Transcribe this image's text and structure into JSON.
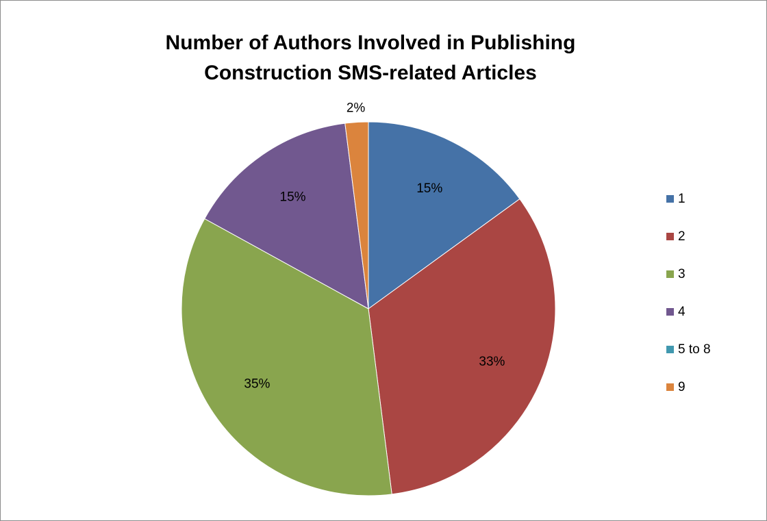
{
  "chart_data": {
    "type": "pie",
    "title": [
      "Number of Authors Involved in Publishing",
      "Construction SMS-related Articles"
    ],
    "slices": [
      {
        "label": "1",
        "value": 15,
        "data_label": "15%",
        "color": "#4572A7"
      },
      {
        "label": "2",
        "value": 33,
        "data_label": "33%",
        "color": "#AA4643"
      },
      {
        "label": "3",
        "value": 35,
        "data_label": "35%",
        "color": "#89A54E"
      },
      {
        "label": "4",
        "value": 15,
        "data_label": "15%",
        "color": "#71588F"
      },
      {
        "label": "5 to 8",
        "value": 0,
        "data_label": "",
        "color": "#4198AF"
      },
      {
        "label": "9",
        "value": 2,
        "data_label": "2%",
        "color": "#DB843D"
      }
    ],
    "legend_position": "right"
  }
}
